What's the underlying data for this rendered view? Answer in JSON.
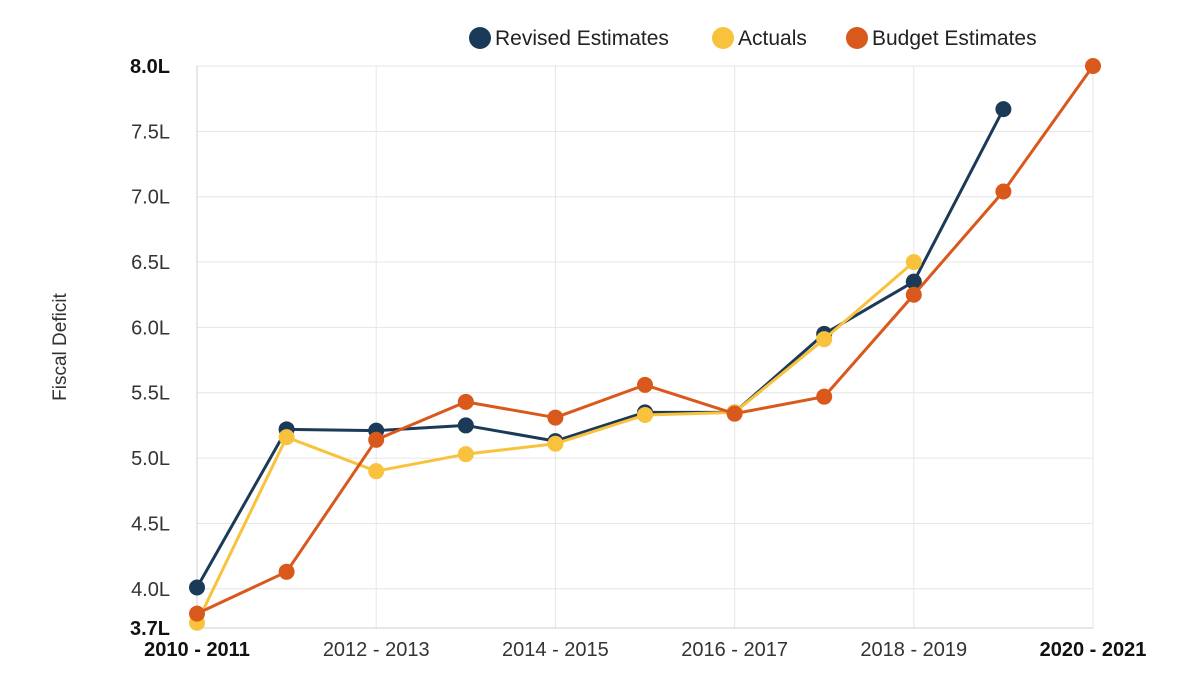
{
  "chart_data": {
    "type": "line",
    "title": "",
    "xlabel": "",
    "ylabel": "Fiscal Deficit",
    "x": [
      2010,
      2011,
      2012,
      2013,
      2014,
      2015,
      2016,
      2017,
      2018,
      2019,
      2020
    ],
    "xlim": [
      2010,
      2020
    ],
    "ylim": [
      3.7,
      8.0
    ],
    "x_ticks": [
      {
        "value": 2010,
        "label": "2010 - 2011",
        "bold": true
      },
      {
        "value": 2012,
        "label": "2012 - 2013",
        "bold": false
      },
      {
        "value": 2014,
        "label": "2014 - 2015",
        "bold": false
      },
      {
        "value": 2016,
        "label": "2016 - 2017",
        "bold": false
      },
      {
        "value": 2018,
        "label": "2018 - 2019",
        "bold": false
      },
      {
        "value": 2020,
        "label": "2020 - 2021",
        "bold": true
      }
    ],
    "y_ticks": [
      {
        "value": 8.0,
        "label": "8.0L",
        "bold": true
      },
      {
        "value": 7.5,
        "label": "7.5L",
        "bold": false
      },
      {
        "value": 7.0,
        "label": "7.0L",
        "bold": false
      },
      {
        "value": 6.5,
        "label": "6.5L",
        "bold": false
      },
      {
        "value": 6.0,
        "label": "6.0L",
        "bold": false
      },
      {
        "value": 5.5,
        "label": "5.5L",
        "bold": false
      },
      {
        "value": 5.0,
        "label": "5.0L",
        "bold": false
      },
      {
        "value": 4.5,
        "label": "4.5L",
        "bold": false
      },
      {
        "value": 4.0,
        "label": "4.0L",
        "bold": false
      },
      {
        "value": 3.7,
        "label": "3.7L",
        "bold": true
      }
    ],
    "legend_position": "top-right",
    "grid": true,
    "series": [
      {
        "name": "Revised Estimates",
        "color": "#1b3a57",
        "values": [
          4.01,
          5.22,
          5.21,
          5.25,
          5.13,
          5.35,
          5.35,
          5.95,
          6.35,
          7.67,
          null
        ]
      },
      {
        "name": "Actuals",
        "color": "#f9c23c",
        "values": [
          3.74,
          5.16,
          4.9,
          5.03,
          5.11,
          5.33,
          5.35,
          5.91,
          6.5,
          null,
          null
        ]
      },
      {
        "name": "Budget Estimates",
        "color": "#d9581c",
        "values": [
          3.81,
          4.13,
          5.14,
          5.43,
          5.31,
          5.56,
          5.34,
          5.47,
          6.25,
          7.04,
          8.0
        ]
      }
    ]
  }
}
